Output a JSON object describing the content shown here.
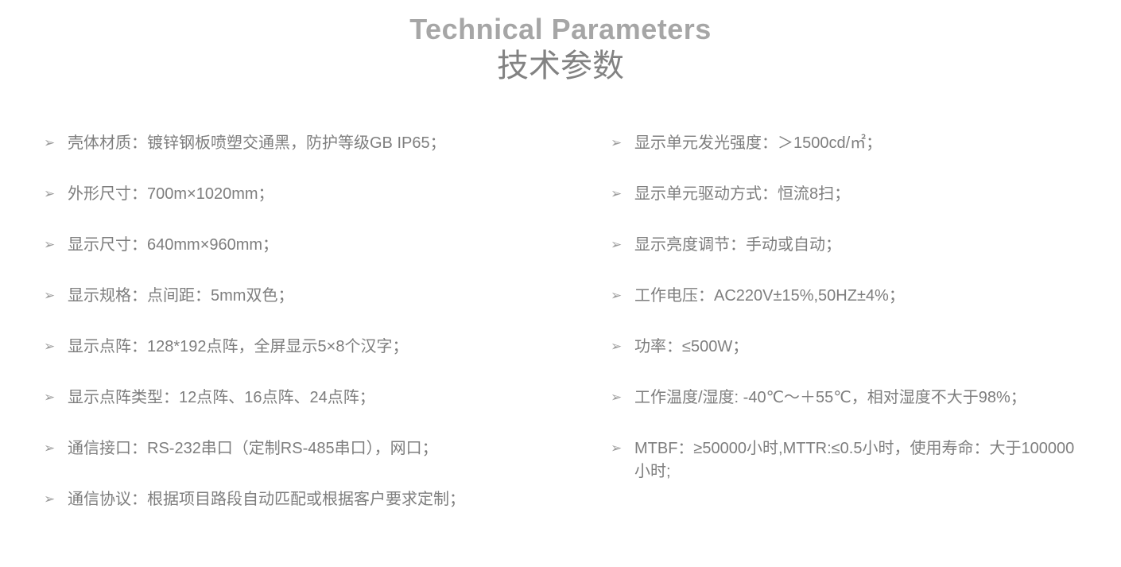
{
  "title": {
    "en": "Technical Parameters",
    "cn": "技术参数"
  },
  "bullet_char": "➢",
  "columns": {
    "left": [
      "壳体材质：镀锌钢板喷塑交通黑，防护等级GB IP65；",
      "外形尺寸：700m×1020mm；",
      "显示尺寸：640mm×960mm；",
      "显示规格：点间距：5mm双色；",
      "显示点阵：128*192点阵，全屏显示5×8个汉字；",
      "显示点阵类型：12点阵、16点阵、24点阵；",
      "通信接口：RS-232串口（定制RS-485串口），网口；",
      "通信协议：根据项目路段自动匹配或根据客户要求定制；"
    ],
    "right": [
      "显示单元发光强度：＞1500cd/㎡；",
      "显示单元驱动方式：恒流8扫；",
      "显示亮度调节：手动或自动；",
      "工作电压：AC220V±15%,50HZ±4%；",
      "功率：≤500W；",
      "工作温度/湿度: -40℃～＋55℃，相对湿度不大于98%；",
      "MTBF：≥50000小时,MTTR:≤0.5小时，使用寿命：大于100000小时;"
    ]
  },
  "colors": {
    "background": "#ffffff",
    "title_en": "#a6a6a6",
    "title_cn": "#828282",
    "body_text": "#7e7e7e",
    "bullet": "#9a9a9a"
  }
}
